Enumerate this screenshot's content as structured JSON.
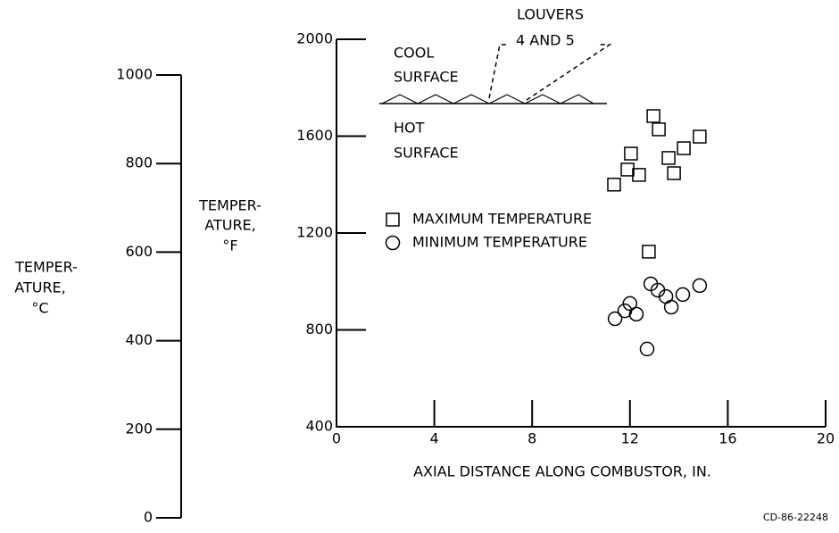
{
  "chart_data": {
    "type": "scatter",
    "xlabel": "AXIAL DISTANCE ALONG COMBUSTOR, IN.",
    "ylabel": [
      "TEMPER-",
      "ATURE,",
      "°F"
    ],
    "y2label": [
      "TEMPER-",
      "ATURE,",
      "°C"
    ],
    "xlim": [
      0,
      20
    ],
    "xticks": [
      0,
      4,
      8,
      12,
      16,
      20
    ],
    "ylim": [
      400,
      2000
    ],
    "yticks": [
      400,
      800,
      1200,
      1600,
      2000
    ],
    "y2lim": [
      0,
      1000
    ],
    "y2ticks": [
      0,
      200,
      400,
      600,
      800,
      1000
    ],
    "annotations": [
      "LOUVERS",
      "4 AND 5",
      "COOL",
      "SURFACE",
      "HOT",
      "SURFACE"
    ],
    "footnote": "CD-86-22248",
    "series": [
      {
        "name": "MAXIMUM TEMPERATURE",
        "marker": "square",
        "x": [
          11.35,
          11.9,
          12.04,
          12.37,
          12.96,
          13.18,
          13.58,
          13.8,
          14.2,
          14.85,
          12.77
        ],
        "values": [
          1400,
          1462,
          1528,
          1440,
          1683,
          1628,
          1510,
          1447,
          1550,
          1598,
          1123
        ]
      },
      {
        "name": "MINIMUM TEMPERATURE",
        "marker": "circle",
        "x": [
          11.39,
          11.79,
          12.0,
          12.26,
          12.85,
          13.14,
          13.47,
          13.69,
          14.16,
          14.85,
          12.7
        ],
        "values": [
          846,
          879,
          909,
          865,
          990,
          964,
          938,
          894,
          946,
          983,
          721
        ]
      }
    ]
  }
}
